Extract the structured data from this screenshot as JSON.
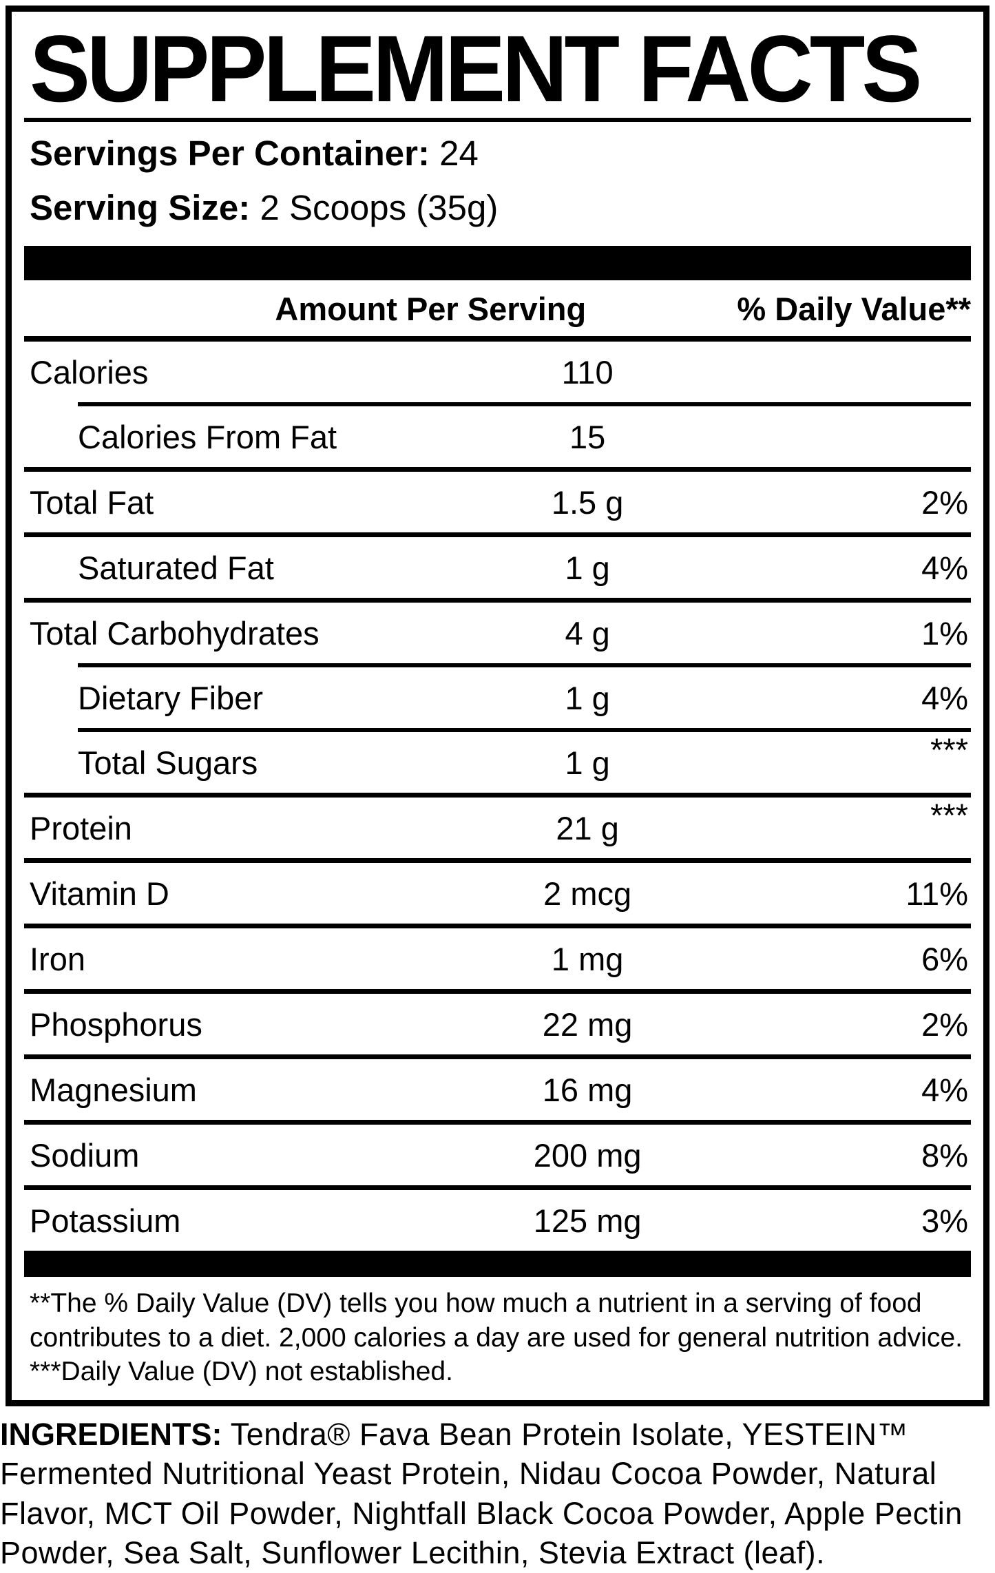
{
  "colors": {
    "text": "#000000",
    "background": "#ffffff"
  },
  "label": {
    "title": "SUPPLEMENT FACTS",
    "servings_per_container_label": "Servings Per Container:",
    "servings_per_container_value": "24",
    "serving_size_label": "Serving Size:",
    "serving_size_value": "2 Scoops (35g)",
    "columns": {
      "amount": "Amount Per Serving",
      "dv": "% Daily Value**"
    },
    "rows": [
      {
        "name": "Calories",
        "amount": "110",
        "dv": "",
        "indent": false,
        "separator": "none"
      },
      {
        "name": "Calories From Fat",
        "amount": "15",
        "dv": "",
        "indent": true,
        "separator": "indented"
      },
      {
        "name": "Total Fat",
        "amount": "1.5 g",
        "dv": "2%",
        "indent": false,
        "separator": "full"
      },
      {
        "name": "Saturated Fat",
        "amount": "1 g",
        "dv": "4%",
        "indent": true,
        "separator": "full"
      },
      {
        "name": "Total Carbohydrates",
        "amount": "4 g",
        "dv": "1%",
        "indent": false,
        "separator": "full"
      },
      {
        "name": "Dietary Fiber",
        "amount": "1 g",
        "dv": "4%",
        "indent": true,
        "separator": "indented"
      },
      {
        "name": "Total Sugars",
        "amount": "1 g",
        "dv": "***",
        "indent": true,
        "separator": "indented"
      },
      {
        "name": "Protein",
        "amount": "21 g",
        "dv": "***",
        "indent": false,
        "separator": "full"
      },
      {
        "name": "Vitamin D",
        "amount": "2 mcg",
        "dv": "11%",
        "indent": false,
        "separator": "full"
      },
      {
        "name": "Iron",
        "amount": "1 mg",
        "dv": "6%",
        "indent": false,
        "separator": "full"
      },
      {
        "name": "Phosphorus",
        "amount": "22 mg",
        "dv": "2%",
        "indent": false,
        "separator": "full"
      },
      {
        "name": "Magnesium",
        "amount": "16 mg",
        "dv": "4%",
        "indent": false,
        "separator": "full"
      },
      {
        "name": "Sodium",
        "amount": "200 mg",
        "dv": "8%",
        "indent": false,
        "separator": "full"
      },
      {
        "name": "Potassium",
        "amount": "125 mg",
        "dv": "3%",
        "indent": false,
        "separator": "full"
      }
    ],
    "footnotes": [
      "**The % Daily Value (DV) tells you how much a nutrient in a serving of food contributes to a diet. 2,000 calories a day are used for general nutrition advice.",
      "***Daily Value (DV) not established."
    ]
  },
  "ingredients": {
    "label": "INGREDIENTS:",
    "text": " Tendra® Fava Bean Protein Isolate, YESTEIN™ Fermented Nutritional Yeast Protein, Nidau Cocoa Powder, Natural Flavor, MCT Oil Powder, Nightfall Black Cocoa Powder, Apple Pectin Powder, Sea Salt, Sunflower Lecithin, Stevia Extract (leaf)."
  }
}
